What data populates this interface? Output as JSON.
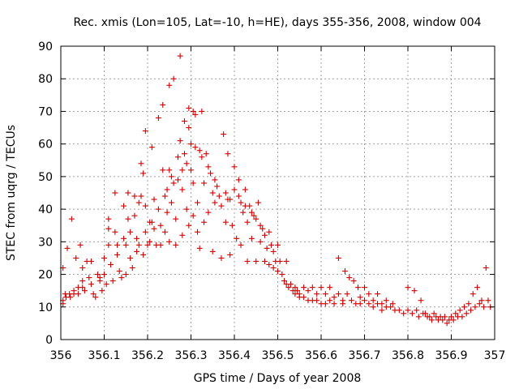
{
  "chart_data": {
    "type": "scatter",
    "title": "Rec. xmis (Lon=105, Lat=-10, h=HE), days 355-356, 2008, window 004",
    "xlabel": "GPS time / Days of year 2008",
    "ylabel": "STEC from uqrg / TECUs",
    "xlim": [
      356,
      357
    ],
    "ylim": [
      0,
      90
    ],
    "grid": true,
    "marker": "plus",
    "xticks": [
      356,
      356.1,
      356.2,
      356.3,
      356.4,
      356.5,
      356.6,
      356.7,
      356.8,
      356.9,
      357
    ],
    "xtick_labels": [
      "356",
      "356.1",
      "356.2",
      "356.3",
      "356.4",
      "356.5",
      "356.6",
      "356.7",
      "356.8",
      "356.9",
      "357"
    ],
    "yticks": [
      0,
      10,
      20,
      30,
      40,
      50,
      60,
      70,
      80,
      90
    ],
    "ytick_labels": [
      "0",
      "10",
      "20",
      "30",
      "40",
      "50",
      "60",
      "70",
      "80",
      "90"
    ],
    "series": [
      {
        "color": "#cc0000",
        "points": [
          [
            356.005,
            22
          ],
          [
            356.005,
            12
          ],
          [
            356.005,
            11
          ],
          [
            356.01,
            14
          ],
          [
            356.012,
            13
          ],
          [
            356.015,
            28
          ],
          [
            356.02,
            14
          ],
          [
            356.022,
            13
          ],
          [
            356.025,
            37
          ],
          [
            356.03,
            15
          ],
          [
            356.03,
            14
          ],
          [
            356.035,
            25
          ],
          [
            356.04,
            16
          ],
          [
            356.04,
            14
          ],
          [
            356.045,
            29
          ],
          [
            356.05,
            22
          ],
          [
            356.05,
            18
          ],
          [
            356.05,
            16
          ],
          [
            356.055,
            15
          ],
          [
            356.06,
            24
          ],
          [
            356.065,
            19
          ],
          [
            356.07,
            24
          ],
          [
            356.07,
            17
          ],
          [
            356.075,
            14
          ],
          [
            356.08,
            13
          ],
          [
            356.085,
            20
          ],
          [
            356.09,
            19
          ],
          [
            356.09,
            18
          ],
          [
            356.095,
            15
          ],
          [
            356.1,
            25
          ],
          [
            356.1,
            20
          ],
          [
            356.105,
            17
          ],
          [
            356.11,
            37
          ],
          [
            356.11,
            34
          ],
          [
            356.11,
            29
          ],
          [
            356.115,
            23
          ],
          [
            356.12,
            18
          ],
          [
            356.125,
            45
          ],
          [
            356.125,
            33
          ],
          [
            356.13,
            29
          ],
          [
            356.13,
            26
          ],
          [
            356.135,
            21
          ],
          [
            356.14,
            19
          ],
          [
            356.145,
            41
          ],
          [
            356.145,
            31
          ],
          [
            356.15,
            29
          ],
          [
            356.15,
            20
          ],
          [
            356.155,
            45
          ],
          [
            356.155,
            37
          ],
          [
            356.16,
            33
          ],
          [
            356.16,
            25
          ],
          [
            356.165,
            22
          ],
          [
            356.17,
            44
          ],
          [
            356.17,
            38
          ],
          [
            356.175,
            31
          ],
          [
            356.175,
            27
          ],
          [
            356.18,
            42
          ],
          [
            356.18,
            29
          ],
          [
            356.185,
            54
          ],
          [
            356.185,
            44
          ],
          [
            356.19,
            51
          ],
          [
            356.19,
            26
          ],
          [
            356.195,
            64
          ],
          [
            356.195,
            41
          ],
          [
            356.195,
            33
          ],
          [
            356.2,
            29
          ],
          [
            356.205,
            36
          ],
          [
            356.205,
            30
          ],
          [
            356.21,
            59
          ],
          [
            356.21,
            36
          ],
          [
            356.215,
            43
          ],
          [
            356.215,
            34
          ],
          [
            356.22,
            29
          ],
          [
            356.225,
            68
          ],
          [
            356.225,
            40
          ],
          [
            356.23,
            35
          ],
          [
            356.23,
            29
          ],
          [
            356.235,
            72
          ],
          [
            356.235,
            52
          ],
          [
            356.24,
            44
          ],
          [
            356.24,
            33
          ],
          [
            356.245,
            46
          ],
          [
            356.245,
            39
          ],
          [
            356.25,
            78
          ],
          [
            356.25,
            52
          ],
          [
            356.25,
            30
          ],
          [
            356.255,
            50
          ],
          [
            356.255,
            42
          ],
          [
            356.26,
            80
          ],
          [
            356.26,
            48
          ],
          [
            356.265,
            37
          ],
          [
            356.265,
            29
          ],
          [
            356.27,
            56
          ],
          [
            356.27,
            49
          ],
          [
            356.275,
            87
          ],
          [
            356.275,
            61
          ],
          [
            356.28,
            52
          ],
          [
            356.28,
            46
          ],
          [
            356.28,
            32
          ],
          [
            356.285,
            67
          ],
          [
            356.285,
            57
          ],
          [
            356.29,
            54
          ],
          [
            356.29,
            40
          ],
          [
            356.295,
            71
          ],
          [
            356.295,
            65
          ],
          [
            356.295,
            35
          ],
          [
            356.3,
            60
          ],
          [
            356.3,
            52
          ],
          [
            356.305,
            70
          ],
          [
            356.305,
            48
          ],
          [
            356.305,
            38
          ],
          [
            356.31,
            69
          ],
          [
            356.31,
            59
          ],
          [
            356.315,
            42
          ],
          [
            356.315,
            33
          ],
          [
            356.32,
            58
          ],
          [
            356.32,
            28
          ],
          [
            356.325,
            70
          ],
          [
            356.325,
            56
          ],
          [
            356.33,
            48
          ],
          [
            356.33,
            36
          ],
          [
            356.335,
            57
          ],
          [
            356.34,
            53
          ],
          [
            356.34,
            39
          ],
          [
            356.345,
            51
          ],
          [
            356.35,
            45
          ],
          [
            356.35,
            27
          ],
          [
            356.355,
            49
          ],
          [
            356.355,
            42
          ],
          [
            356.36,
            47
          ],
          [
            356.365,
            44
          ],
          [
            356.37,
            41
          ],
          [
            356.37,
            25
          ],
          [
            356.375,
            63
          ],
          [
            356.38,
            45
          ],
          [
            356.38,
            36
          ],
          [
            356.385,
            57
          ],
          [
            356.385,
            43
          ],
          [
            356.39,
            43
          ],
          [
            356.39,
            26
          ],
          [
            356.395,
            35
          ],
          [
            356.4,
            53
          ],
          [
            356.4,
            46
          ],
          [
            356.405,
            31
          ],
          [
            356.41,
            49
          ],
          [
            356.41,
            44
          ],
          [
            356.415,
            42
          ],
          [
            356.415,
            29
          ],
          [
            356.42,
            39
          ],
          [
            356.425,
            46
          ],
          [
            356.425,
            41
          ],
          [
            356.43,
            36
          ],
          [
            356.43,
            24
          ],
          [
            356.435,
            41
          ],
          [
            356.44,
            39
          ],
          [
            356.44,
            31
          ],
          [
            356.445,
            38
          ],
          [
            356.45,
            37
          ],
          [
            356.45,
            24
          ],
          [
            356.455,
            42
          ],
          [
            356.46,
            35
          ],
          [
            356.46,
            30
          ],
          [
            356.465,
            34
          ],
          [
            356.47,
            32
          ],
          [
            356.47,
            24
          ],
          [
            356.475,
            28
          ],
          [
            356.48,
            33
          ],
          [
            356.48,
            23
          ],
          [
            356.485,
            29
          ],
          [
            356.49,
            27
          ],
          [
            356.49,
            22
          ],
          [
            356.495,
            24
          ],
          [
            356.5,
            29
          ],
          [
            356.5,
            21
          ],
          [
            356.505,
            24
          ],
          [
            356.51,
            20
          ],
          [
            356.515,
            18
          ],
          [
            356.52,
            24
          ],
          [
            356.52,
            17
          ],
          [
            356.525,
            16
          ],
          [
            356.53,
            17
          ],
          [
            356.535,
            15
          ],
          [
            356.54,
            16
          ],
          [
            356.54,
            14
          ],
          [
            356.545,
            15
          ],
          [
            356.55,
            14
          ],
          [
            356.55,
            13
          ],
          [
            356.56,
            16
          ],
          [
            356.56,
            13
          ],
          [
            356.57,
            15
          ],
          [
            356.57,
            12
          ],
          [
            356.58,
            16
          ],
          [
            356.58,
            12
          ],
          [
            356.59,
            14
          ],
          [
            356.59,
            12
          ],
          [
            356.6,
            16
          ],
          [
            356.6,
            11
          ],
          [
            356.61,
            14
          ],
          [
            356.61,
            11
          ],
          [
            356.62,
            16
          ],
          [
            356.62,
            12
          ],
          [
            356.63,
            13
          ],
          [
            356.63,
            11
          ],
          [
            356.64,
            25
          ],
          [
            356.64,
            14
          ],
          [
            356.65,
            12
          ],
          [
            356.65,
            11
          ],
          [
            356.655,
            21
          ],
          [
            356.66,
            14
          ],
          [
            356.665,
            19
          ],
          [
            356.67,
            12
          ],
          [
            356.675,
            18
          ],
          [
            356.68,
            11
          ],
          [
            356.685,
            16
          ],
          [
            356.69,
            13
          ],
          [
            356.69,
            11
          ],
          [
            356.7,
            16
          ],
          [
            356.7,
            12
          ],
          [
            356.71,
            14
          ],
          [
            356.71,
            11
          ],
          [
            356.72,
            12
          ],
          [
            356.72,
            10
          ],
          [
            356.73,
            14
          ],
          [
            356.73,
            11
          ],
          [
            356.74,
            11
          ],
          [
            356.74,
            9
          ],
          [
            356.75,
            12
          ],
          [
            356.75,
            10
          ],
          [
            356.76,
            10
          ],
          [
            356.765,
            11
          ],
          [
            356.77,
            9
          ],
          [
            356.78,
            9
          ],
          [
            356.79,
            8
          ],
          [
            356.8,
            16
          ],
          [
            356.8,
            9
          ],
          [
            356.81,
            8
          ],
          [
            356.815,
            15
          ],
          [
            356.82,
            9
          ],
          [
            356.825,
            7
          ],
          [
            356.83,
            12
          ],
          [
            356.835,
            8
          ],
          [
            356.84,
            8
          ],
          [
            356.845,
            7
          ],
          [
            356.85,
            7
          ],
          [
            356.855,
            6
          ],
          [
            356.86,
            8
          ],
          [
            356.865,
            7
          ],
          [
            356.87,
            6
          ],
          [
            356.875,
            7
          ],
          [
            356.88,
            6
          ],
          [
            356.885,
            7
          ],
          [
            356.89,
            5
          ],
          [
            356.895,
            6
          ],
          [
            356.9,
            7
          ],
          [
            356.905,
            6
          ],
          [
            356.91,
            8
          ],
          [
            356.915,
            7
          ],
          [
            356.92,
            9
          ],
          [
            356.925,
            7
          ],
          [
            356.93,
            10
          ],
          [
            356.935,
            8
          ],
          [
            356.94,
            11
          ],
          [
            356.945,
            9
          ],
          [
            356.95,
            14
          ],
          [
            356.955,
            10
          ],
          [
            356.96,
            16
          ],
          [
            356.965,
            11
          ],
          [
            356.97,
            12
          ],
          [
            356.975,
            10
          ],
          [
            356.98,
            22
          ],
          [
            356.985,
            12
          ],
          [
            356.99,
            10
          ]
        ]
      }
    ]
  }
}
